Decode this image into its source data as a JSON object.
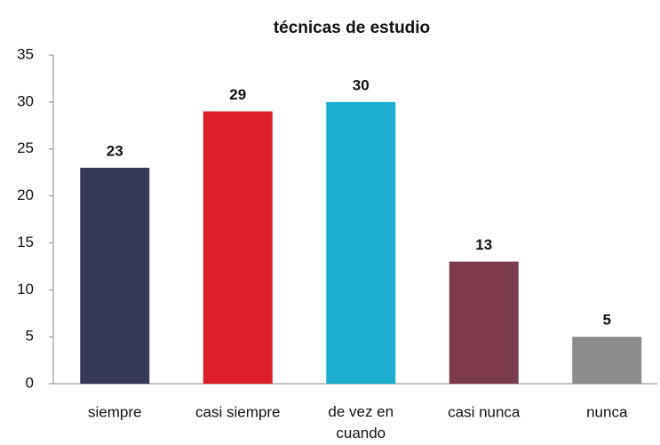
{
  "chart_data": {
    "type": "bar",
    "title": "técnicas de estudio",
    "categories": [
      "siempre",
      "casi siempre",
      "de vez en cuando",
      "casi nunca",
      "nunca"
    ],
    "values": [
      23,
      29,
      30,
      13,
      5
    ],
    "colors": [
      "#363958",
      "#dc1f2a",
      "#1eadd1",
      "#7c3b4b",
      "#8c8c8c"
    ],
    "ylim": [
      0,
      35
    ],
    "yticks": [
      0,
      5,
      10,
      15,
      20,
      25,
      30,
      35
    ],
    "grid": false
  }
}
